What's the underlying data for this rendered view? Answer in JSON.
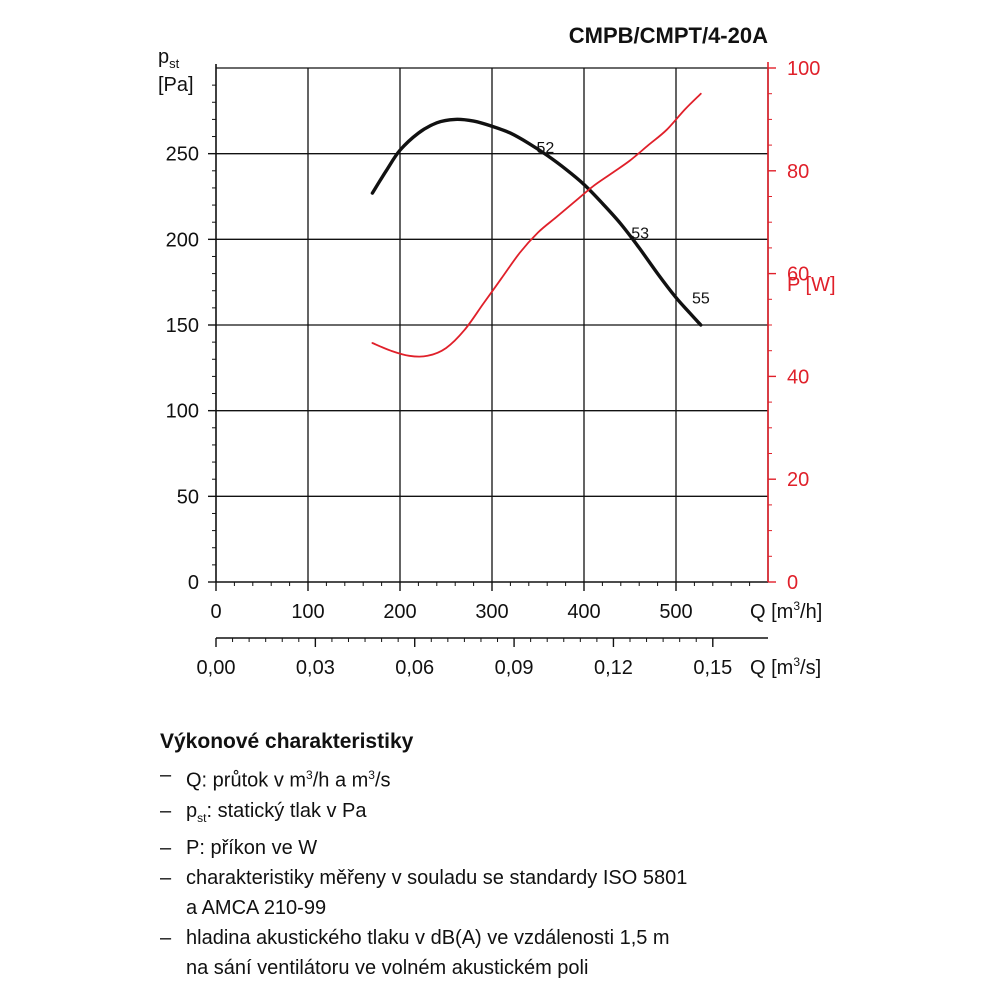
{
  "chart_data": {
    "type": "line",
    "title": "CMPB/CMPT/4-20A",
    "ylabel_left": {
      "symbol": "p",
      "sub": "st",
      "unit": "[Pa]"
    },
    "ylabel_right": "P [W]",
    "xlabel_top": {
      "pre": "Q [m",
      "sup": "3",
      "post": "/h]"
    },
    "xlabel_bottom": {
      "pre": "Q [m",
      "sup": "3",
      "post": "/s]"
    },
    "x_m3h": {
      "range": [
        0,
        600
      ],
      "ticks": [
        0,
        100,
        200,
        300,
        400,
        500
      ],
      "tick_labels": [
        "0",
        "100",
        "200",
        "300",
        "400",
        "500"
      ]
    },
    "x_m3s": {
      "ticks": [
        0.0,
        0.03,
        0.06,
        0.09,
        0.12,
        0.15
      ],
      "tick_labels": [
        "0,00",
        "0,03",
        "0,06",
        "0,09",
        "0,12",
        "0,15"
      ]
    },
    "y_left": {
      "range": [
        0,
        300
      ],
      "ticks": [
        0,
        50,
        100,
        150,
        200,
        250
      ],
      "tick_labels": [
        "0",
        "50",
        "100",
        "150",
        "200",
        "250"
      ]
    },
    "y_right": {
      "range": [
        0,
        100
      ],
      "ticks": [
        0,
        20,
        40,
        60,
        80,
        100
      ],
      "tick_labels": [
        "0",
        "20",
        "40",
        "60",
        "80",
        "100"
      ]
    },
    "grid": true,
    "series": [
      {
        "axis": "left",
        "color": "#111111",
        "points": [
          [
            170,
            227
          ],
          [
            185,
            240
          ],
          [
            200,
            252
          ],
          [
            220,
            262
          ],
          [
            240,
            268
          ],
          [
            260,
            270
          ],
          [
            280,
            269
          ],
          [
            300,
            266
          ],
          [
            320,
            262
          ],
          [
            340,
            256
          ],
          [
            360,
            249
          ],
          [
            380,
            241
          ],
          [
            400,
            232
          ],
          [
            420,
            221
          ],
          [
            440,
            209
          ],
          [
            460,
            195
          ],
          [
            480,
            180
          ],
          [
            500,
            166
          ],
          [
            515,
            157
          ],
          [
            527,
            150
          ]
        ]
      },
      {
        "axis": "right",
        "color": "#e0202a",
        "points": [
          [
            170,
            46.5
          ],
          [
            190,
            45
          ],
          [
            210,
            44
          ],
          [
            230,
            44
          ],
          [
            250,
            45.5
          ],
          [
            270,
            49
          ],
          [
            290,
            54
          ],
          [
            310,
            59
          ],
          [
            330,
            64
          ],
          [
            350,
            68
          ],
          [
            370,
            71
          ],
          [
            390,
            74
          ],
          [
            410,
            77
          ],
          [
            430,
            79.5
          ],
          [
            450,
            82
          ],
          [
            470,
            85
          ],
          [
            490,
            88
          ],
          [
            510,
            92
          ],
          [
            527,
            95
          ]
        ]
      }
    ],
    "annotations": [
      {
        "text": "52",
        "x": 358,
        "y": 254
      },
      {
        "text": "53",
        "x": 461,
        "y": 204
      },
      {
        "text": "55",
        "x": 527,
        "y": 166
      }
    ]
  },
  "notes": {
    "heading": "Výkonové charakteristiky",
    "q_item": {
      "pre": "Q: průtok v m",
      "sup1": "3",
      "mid": "/h a m",
      "sup2": "3",
      "post": "/s"
    },
    "pst_item": {
      "pre": "p",
      "sub": "st",
      "post": ": statický tlak v Pa"
    },
    "p_item": "P: příkon ve W",
    "iso_item": {
      "line1": "charakteristiky měřeny v souladu se standardy ISO 5801",
      "line2": "a AMCA 210-99"
    },
    "noise_item": {
      "line1": "hladina akustického tlaku v dB(A) ve vzdálenosti 1,5 m",
      "line2": "na sání ventilátoru ve volném akustickém poli"
    }
  }
}
